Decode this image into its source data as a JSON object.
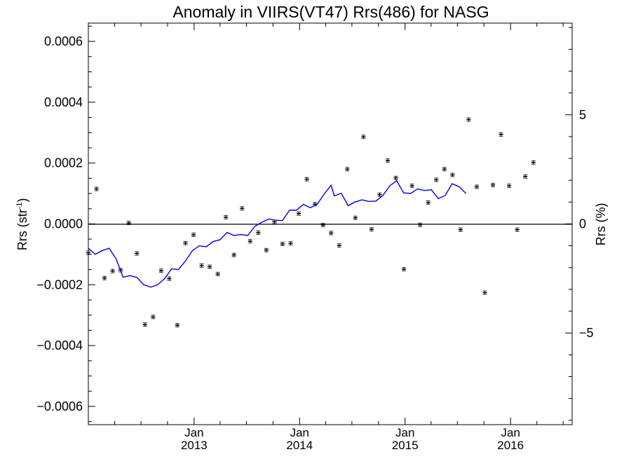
{
  "chart_data": {
    "type": "scatter",
    "title": "Anomaly in VIIRS(VT47) Rrs(486) for NASG",
    "ylabel_left": "Rrs (str",
    "ylabel_left_superscript": "-1",
    "ylabel_left_suffix": ")",
    "ylabel_right": "Rrs (%)",
    "xlim": [
      "2012-01-01",
      "2016-08-01"
    ],
    "ylim": [
      -0.00066,
      0.00066
    ],
    "ylim_right": [
      -9.2,
      9.2
    ],
    "left_ticks": [
      {
        "value": 0.0006,
        "label": "0.0006"
      },
      {
        "value": 0.0004,
        "label": "0.0004"
      },
      {
        "value": 0.0002,
        "label": "0.0002"
      },
      {
        "value": 0.0,
        "label": "0.0000"
      },
      {
        "value": -0.0002,
        "label": "−0.0002"
      },
      {
        "value": -0.0004,
        "label": "−0.0004"
      },
      {
        "value": -0.0006,
        "label": "−0.0006"
      }
    ],
    "right_ticks": [
      {
        "value": 5,
        "label": "5"
      },
      {
        "value": 0,
        "label": "0"
      },
      {
        "value": -5,
        "label": "−5"
      }
    ],
    "x_ticks": [
      {
        "date": "2013-01-01",
        "month": "Jan",
        "year": "2013"
      },
      {
        "date": "2014-01-01",
        "month": "Jan",
        "year": "2014"
      },
      {
        "date": "2015-01-01",
        "month": "Jan",
        "year": "2015"
      },
      {
        "date": "2016-01-01",
        "month": "Jan",
        "year": "2016"
      }
    ],
    "grid": false,
    "zero_line": true,
    "series": [
      {
        "kind": "points-with-errorbars",
        "color": "#000000",
        "points": [
          [
            "2012-01-01",
            -9.5e-05
          ],
          [
            "2012-01-29",
            0.000115
          ],
          [
            "2012-02-26",
            -0.000178
          ],
          [
            "2012-03-25",
            -0.000155
          ],
          [
            "2012-04-22",
            -0.000152
          ],
          [
            "2012-05-20",
            3e-06
          ],
          [
            "2012-06-17",
            -9.7e-05
          ],
          [
            "2012-07-15",
            -0.000331
          ],
          [
            "2012-08-12",
            -0.000306
          ],
          [
            "2012-09-09",
            -0.000154
          ],
          [
            "2012-10-07",
            -0.00018
          ],
          [
            "2012-11-04",
            -0.000333
          ],
          [
            "2012-12-02",
            -6.3e-05
          ],
          [
            "2012-12-30",
            -3.6e-05
          ],
          [
            "2013-01-27",
            -0.000137
          ],
          [
            "2013-02-24",
            -0.000141
          ],
          [
            "2013-03-24",
            -0.000165
          ],
          [
            "2013-04-21",
            2.2e-05
          ],
          [
            "2013-05-19",
            -0.000102
          ],
          [
            "2013-06-16",
            5.1e-05
          ],
          [
            "2013-07-14",
            -5.7e-05
          ],
          [
            "2013-08-11",
            -2.9e-05
          ],
          [
            "2013-09-08",
            -8.6e-05
          ],
          [
            "2013-10-06",
            7e-06
          ],
          [
            "2013-11-03",
            -6.6e-05
          ],
          [
            "2013-12-01",
            -6.4e-05
          ],
          [
            "2013-12-29",
            3.4e-05
          ],
          [
            "2014-01-26",
            0.000147
          ],
          [
            "2014-02-23",
            6.5e-05
          ],
          [
            "2014-03-23",
            -4e-06
          ],
          [
            "2014-04-20",
            -3e-05
          ],
          [
            "2014-05-18",
            -7.1e-05
          ],
          [
            "2014-06-15",
            0.00018
          ],
          [
            "2014-07-13",
            2e-05
          ],
          [
            "2014-08-10",
            0.000286
          ],
          [
            "2014-09-07",
            -1.8e-05
          ],
          [
            "2014-10-05",
            9.6e-05
          ],
          [
            "2014-11-02",
            0.000208
          ],
          [
            "2014-11-30",
            0.000151
          ],
          [
            "2014-12-28",
            -0.000149
          ],
          [
            "2015-01-25",
            0.000125
          ],
          [
            "2015-02-22",
            -3e-06
          ],
          [
            "2015-03-22",
            7e-05
          ],
          [
            "2015-04-19",
            0.000145
          ],
          [
            "2015-05-17",
            0.00018
          ],
          [
            "2015-06-14",
            0.000161
          ],
          [
            "2015-07-12",
            -1.9e-05
          ],
          [
            "2015-08-09",
            0.000343
          ],
          [
            "2015-09-06",
            0.000122
          ],
          [
            "2015-10-04",
            -0.000226
          ],
          [
            "2015-11-01",
            0.000128
          ],
          [
            "2015-11-29",
            0.000294
          ],
          [
            "2015-12-27",
            0.000125
          ],
          [
            "2016-01-24",
            -1.9e-05
          ],
          [
            "2016-02-21",
            0.000156
          ],
          [
            "2016-03-20",
            0.000202
          ]
        ]
      },
      {
        "kind": "line",
        "color": "#0000ee",
        "points": [
          [
            "2012-01-01",
            -8e-05
          ],
          [
            "2012-01-25",
            -0.0001
          ],
          [
            "2012-02-18",
            -8.8e-05
          ],
          [
            "2012-03-13",
            -8e-05
          ],
          [
            "2012-04-06",
            -0.000115
          ],
          [
            "2012-04-30",
            -0.000175
          ],
          [
            "2012-05-24",
            -0.00017
          ],
          [
            "2012-06-17",
            -0.000176
          ],
          [
            "2012-07-11",
            -0.0002
          ],
          [
            "2012-08-04",
            -0.000208
          ],
          [
            "2012-08-28",
            -0.0002
          ],
          [
            "2012-09-21",
            -0.00018
          ],
          [
            "2012-10-15",
            -0.000148
          ],
          [
            "2012-11-08",
            -0.00015
          ],
          [
            "2012-12-02",
            -0.000122
          ],
          [
            "2012-12-26",
            -8.8e-05
          ],
          [
            "2013-01-19",
            -7.2e-05
          ],
          [
            "2013-02-12",
            -7.5e-05
          ],
          [
            "2013-03-08",
            -5.8e-05
          ],
          [
            "2013-04-01",
            -5.2e-05
          ],
          [
            "2013-04-25",
            -2.8e-05
          ],
          [
            "2013-05-19",
            -3.8e-05
          ],
          [
            "2013-06-12",
            -3.5e-05
          ],
          [
            "2013-07-06",
            -3.8e-05
          ],
          [
            "2013-07-30",
            -8e-06
          ],
          [
            "2013-08-23",
            5e-06
          ],
          [
            "2013-09-16",
            1.6e-05
          ],
          [
            "2013-10-10",
            1.2e-05
          ],
          [
            "2013-11-03",
            1.1e-05
          ],
          [
            "2013-11-27",
            4.5e-05
          ],
          [
            "2013-12-21",
            4.5e-05
          ],
          [
            "2014-01-14",
            6.4e-05
          ],
          [
            "2014-02-07",
            5.3e-05
          ],
          [
            "2014-03-03",
            6.5e-05
          ],
          [
            "2014-03-27",
            9.8e-05
          ],
          [
            "2014-04-20",
            0.000127
          ],
          [
            "2014-05-01",
            9.2e-05
          ],
          [
            "2014-05-25",
            0.000101
          ],
          [
            "2014-06-18",
            6e-05
          ],
          [
            "2014-07-12",
            7.2e-05
          ],
          [
            "2014-08-05",
            7.9e-05
          ],
          [
            "2014-08-29",
            7.4e-05
          ],
          [
            "2014-09-22",
            7.5e-05
          ],
          [
            "2014-10-16",
            9.3e-05
          ],
          [
            "2014-11-09",
            0.000125
          ],
          [
            "2014-12-03",
            0.000142
          ],
          [
            "2014-12-27",
            0.000102
          ],
          [
            "2015-01-20",
            0.0001
          ],
          [
            "2015-02-13",
            0.000115
          ],
          [
            "2015-03-09",
            0.00011
          ],
          [
            "2015-04-02",
            0.000112
          ],
          [
            "2015-04-26",
            8.3e-05
          ],
          [
            "2015-05-20",
            9.4e-05
          ],
          [
            "2015-06-13",
            0.000132
          ],
          [
            "2015-07-07",
            0.000122
          ],
          [
            "2015-07-31",
            0.0001
          ]
        ]
      }
    ]
  }
}
